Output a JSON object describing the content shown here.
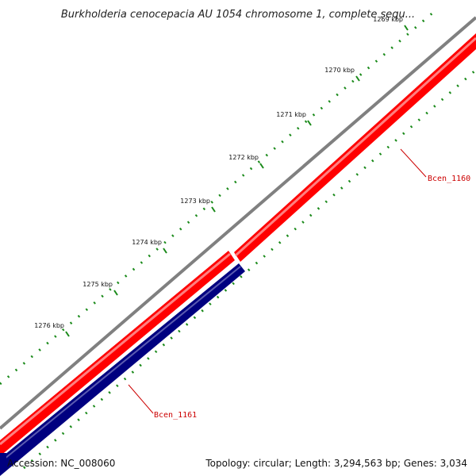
{
  "title": "Burkholderia cenocepacia AU 1054 chromosome 1, complete sequ...",
  "ticks": [
    {
      "label": "1269 kbp"
    },
    {
      "label": "1270 kbp"
    },
    {
      "label": "1271 kbp"
    },
    {
      "label": "1272 kbp"
    },
    {
      "label": "1273 kbp"
    },
    {
      "label": "1274 kbp"
    },
    {
      "label": "1275 kbp"
    },
    {
      "label": "1276 kbp"
    }
  ],
  "genes": [
    {
      "name": "Bcen_1160",
      "strand": "forward",
      "color": "#ff0000"
    },
    {
      "name": "Bcen_1161",
      "strand": "reverse",
      "color": "#000080"
    }
  ],
  "colors": {
    "backbone": "#808080",
    "forward": "#ff0000",
    "reverse": "#000080",
    "ticks": "#1a8a1a",
    "gene_label": "#cc0000"
  },
  "footer": {
    "accession": "Accession: NC_008060",
    "summary": "Topology: circular; Length: 3,294,563 bp; Genes: 3,034"
  }
}
